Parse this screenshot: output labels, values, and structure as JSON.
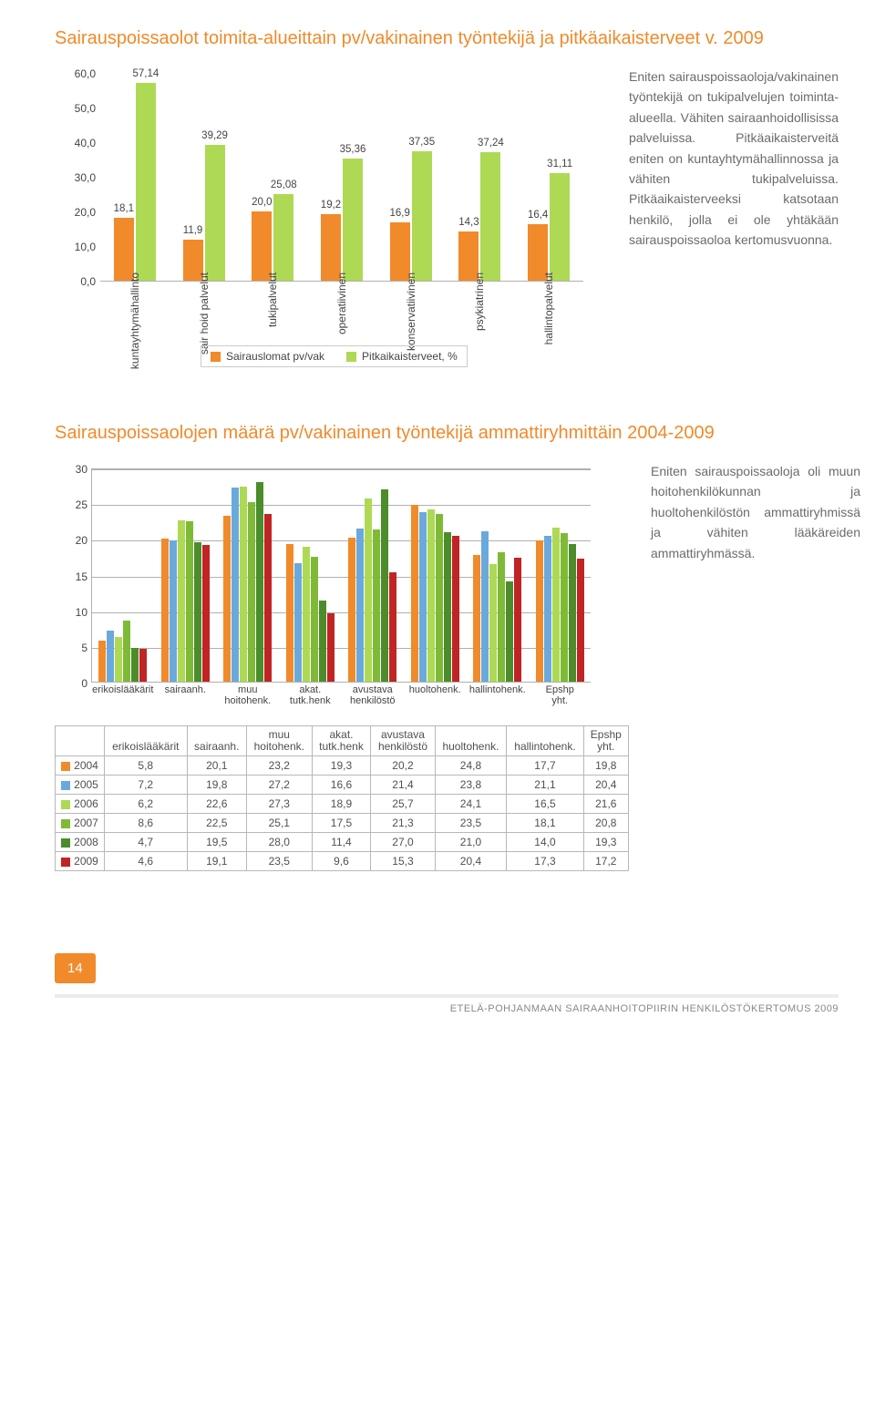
{
  "section1": {
    "title": "Sairauspoissaolot toimita-alueittain pv/vakinainen työntekijä ja pitkäaikaisterveet v. 2009",
    "body": "Eniten sairauspoissaoloja/vakinainen työntekijä on tukipalvelujen toiminta-alueella. Vähiten sairaanhoidollisissa palveluissa. Pitkäaikaisterveitä eniten on kuntayhtymähallinnossa ja vähiten tukipalveluissa. Pitkäaikaisterveeksi katsotaan henkilö, jolla ei ole yhtäkään sairauspoissaoloa kertomusvuonna.",
    "chart": {
      "type": "bar",
      "ymax": 60,
      "ytick_step": 10,
      "colors": {
        "series1": "#f18a2a",
        "series2": "#aed955"
      },
      "legend": [
        "Sairauslomat pv/vak",
        "Pitkaikaisterveet, %"
      ],
      "categories": [
        "kuntayhtymähallinto",
        "sair hoid palvelut",
        "tukipalvelut",
        "operatiivinen",
        "konservatiivinen",
        "psykiatrinen",
        "hallintopalvelut"
      ],
      "series1": [
        18.1,
        11.9,
        20.0,
        19.2,
        16.9,
        14.3,
        16.4
      ],
      "series2": [
        57.14,
        39.29,
        25.08,
        35.36,
        37.35,
        37.24,
        31.11
      ],
      "labels1": [
        "18,1",
        "11,9",
        "20,0",
        "19,2",
        "16,9",
        "14,3",
        "16,4"
      ],
      "labels2": [
        "57,14",
        "39,29",
        "25,08",
        "35,36",
        "37,35",
        "37,24",
        "31,11"
      ],
      "yticks": [
        "0,0",
        "10,0",
        "20,0",
        "30,0",
        "40,0",
        "50,0",
        "60,0"
      ]
    }
  },
  "section2": {
    "title": "Sairauspoissaolojen määrä pv/vakinainen työntekijä ammattiryhmittäin 2004-2009",
    "body": "Eniten sairauspoissaoloja oli muun hoitohenkilökunnan ja huoltohenkilöstön ammattiryhmissä ja vähiten lääkäreiden ammattiryhmässä.",
    "chart": {
      "type": "grouped-bar",
      "ymax": 30,
      "ytick_step": 5,
      "yticks": [
        "0",
        "5",
        "10",
        "15",
        "20",
        "25",
        "30"
      ],
      "columns": [
        "erikoislääkärit",
        "sairaanh.",
        "muu hoitohenk.",
        "akat. tutk.henk",
        "avustava henkilöstö",
        "huoltohenk.",
        "hallintohenk.",
        "Epshp yht."
      ],
      "years": [
        "2004",
        "2005",
        "2006",
        "2007",
        "2008",
        "2009"
      ],
      "year_colors": [
        "#f18a2a",
        "#6aa9dc",
        "#aed955",
        "#7fba37",
        "#4c8c2b",
        "#c02424"
      ],
      "rows": {
        "2004": [
          "5,8",
          "20,1",
          "23,2",
          "19,3",
          "20,2",
          "24,8",
          "17,7",
          "19,8"
        ],
        "2005": [
          "7,2",
          "19,8",
          "27,2",
          "16,6",
          "21,4",
          "23,8",
          "21,1",
          "20,4"
        ],
        "2006": [
          "6,2",
          "22,6",
          "27,3",
          "18,9",
          "25,7",
          "24,1",
          "16,5",
          "21,6"
        ],
        "2007": [
          "8,6",
          "22,5",
          "25,1",
          "17,5",
          "21,3",
          "23,5",
          "18,1",
          "20,8"
        ],
        "2008": [
          "4,7",
          "19,5",
          "28,0",
          "11,4",
          "27,0",
          "21,0",
          "14,0",
          "19,3"
        ],
        "2009": [
          "4,6",
          "19,1",
          "23,5",
          "9,6",
          "15,3",
          "20,4",
          "17,3",
          "17,2"
        ]
      },
      "values": {
        "2004": [
          5.8,
          20.1,
          23.2,
          19.3,
          20.2,
          24.8,
          17.7,
          19.8
        ],
        "2005": [
          7.2,
          19.8,
          27.2,
          16.6,
          21.4,
          23.8,
          21.1,
          20.4
        ],
        "2006": [
          6.2,
          22.6,
          27.3,
          18.9,
          25.7,
          24.1,
          16.5,
          21.6
        ],
        "2007": [
          8.6,
          22.5,
          25.1,
          17.5,
          21.3,
          23.5,
          18.1,
          20.8
        ],
        "2008": [
          4.7,
          19.5,
          28.0,
          11.4,
          27.0,
          21.0,
          14.0,
          19.3
        ],
        "2009": [
          4.6,
          19.1,
          23.5,
          9.6,
          15.3,
          20.4,
          17.3,
          17.2
        ]
      }
    }
  },
  "page_number": "14",
  "footer": "ETELÄ-POHJANMAAN SAIRAANHOITOPIIRIN HENKILÖSTÖKERTOMUS 2009"
}
